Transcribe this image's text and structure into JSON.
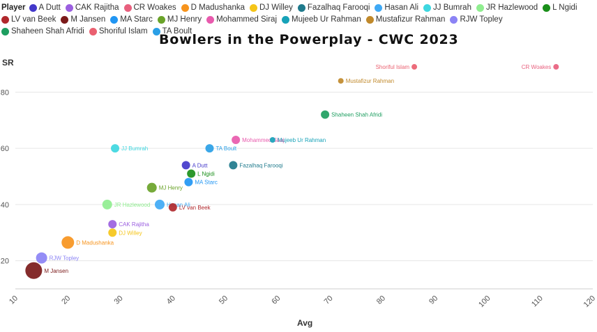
{
  "legend_title": "Player",
  "title": "Bowlers in the Powerplay - CWC 2023",
  "chart_data": {
    "type": "scatter",
    "title": "Bowlers in the Powerplay - CWC 2023",
    "xlabel": "Avg",
    "ylabel": "SR",
    "xlim": [
      10,
      120
    ],
    "ylim": [
      10,
      90
    ],
    "x_ticks": [
      10,
      20,
      30,
      40,
      50,
      60,
      70,
      80,
      90,
      100,
      110,
      120
    ],
    "y_ticks": [
      20,
      40,
      60,
      80
    ],
    "grid": "horizontal",
    "legend_position": "top",
    "series": [
      {
        "name": "A Dutt",
        "color": "#4338ca",
        "x": 42.5,
        "y": 54,
        "size": 6
      },
      {
        "name": "CAK Rajitha",
        "color": "#9b5fe0",
        "x": 28.5,
        "y": 33,
        "size": 6
      },
      {
        "name": "CR Woakes",
        "color": "#e8607e",
        "x": 113,
        "y": 89,
        "size": 4
      },
      {
        "name": "D Madushanka",
        "color": "#f7941d",
        "x": 20,
        "y": 26.5,
        "size": 9
      },
      {
        "name": "DJ Willey",
        "color": "#f5c518",
        "x": 28.5,
        "y": 30,
        "size": 6
      },
      {
        "name": "Fazalhaq Farooqi",
        "color": "#1f7a8c",
        "x": 51.5,
        "y": 54,
        "size": 6
      },
      {
        "name": "Hasan Ali",
        "color": "#3fa9f5",
        "x": 37.5,
        "y": 40,
        "size": 7
      },
      {
        "name": "JJ Bumrah",
        "color": "#3ed7e0",
        "x": 29,
        "y": 60,
        "size": 6
      },
      {
        "name": "JR Hazlewood",
        "color": "#90ee90",
        "x": 27.5,
        "y": 40,
        "size": 7
      },
      {
        "name": "L Ngidi",
        "color": "#1a8f1a",
        "x": 43.5,
        "y": 51,
        "size": 6
      },
      {
        "name": "LV van Beek",
        "color": "#b0282c",
        "x": 40,
        "y": 39,
        "size": 6
      },
      {
        "name": "M Jansen",
        "color": "#7b1a1a",
        "x": 13.5,
        "y": 16.5,
        "size": 12
      },
      {
        "name": "MA Starc",
        "color": "#2196f3",
        "x": 43,
        "y": 48,
        "size": 6
      },
      {
        "name": "MJ Henry",
        "color": "#6aa329",
        "x": 36,
        "y": 46,
        "size": 7
      },
      {
        "name": "Mohammed Siraj",
        "color": "#e85aad",
        "x": 52,
        "y": 63,
        "size": 6
      },
      {
        "name": "Mujeeb Ur Rahman",
        "color": "#17a2b8",
        "x": 59,
        "y": 63,
        "size": 4
      },
      {
        "name": "Mustafizur Rahman",
        "color": "#c0892b",
        "x": 72,
        "y": 84,
        "size": 4
      },
      {
        "name": "RJW Topley",
        "color": "#8b83f5",
        "x": 15,
        "y": 21,
        "size": 8
      },
      {
        "name": "Shaheen Shah Afridi",
        "color": "#1e9e60",
        "x": 69,
        "y": 72,
        "size": 6
      },
      {
        "name": "Shoriful Islam",
        "color": "#ea6070",
        "x": 86,
        "y": 89,
        "size": 4
      },
      {
        "name": "TA Boult",
        "color": "#2a9fe6",
        "x": 47,
        "y": 60,
        "size": 6
      }
    ]
  }
}
